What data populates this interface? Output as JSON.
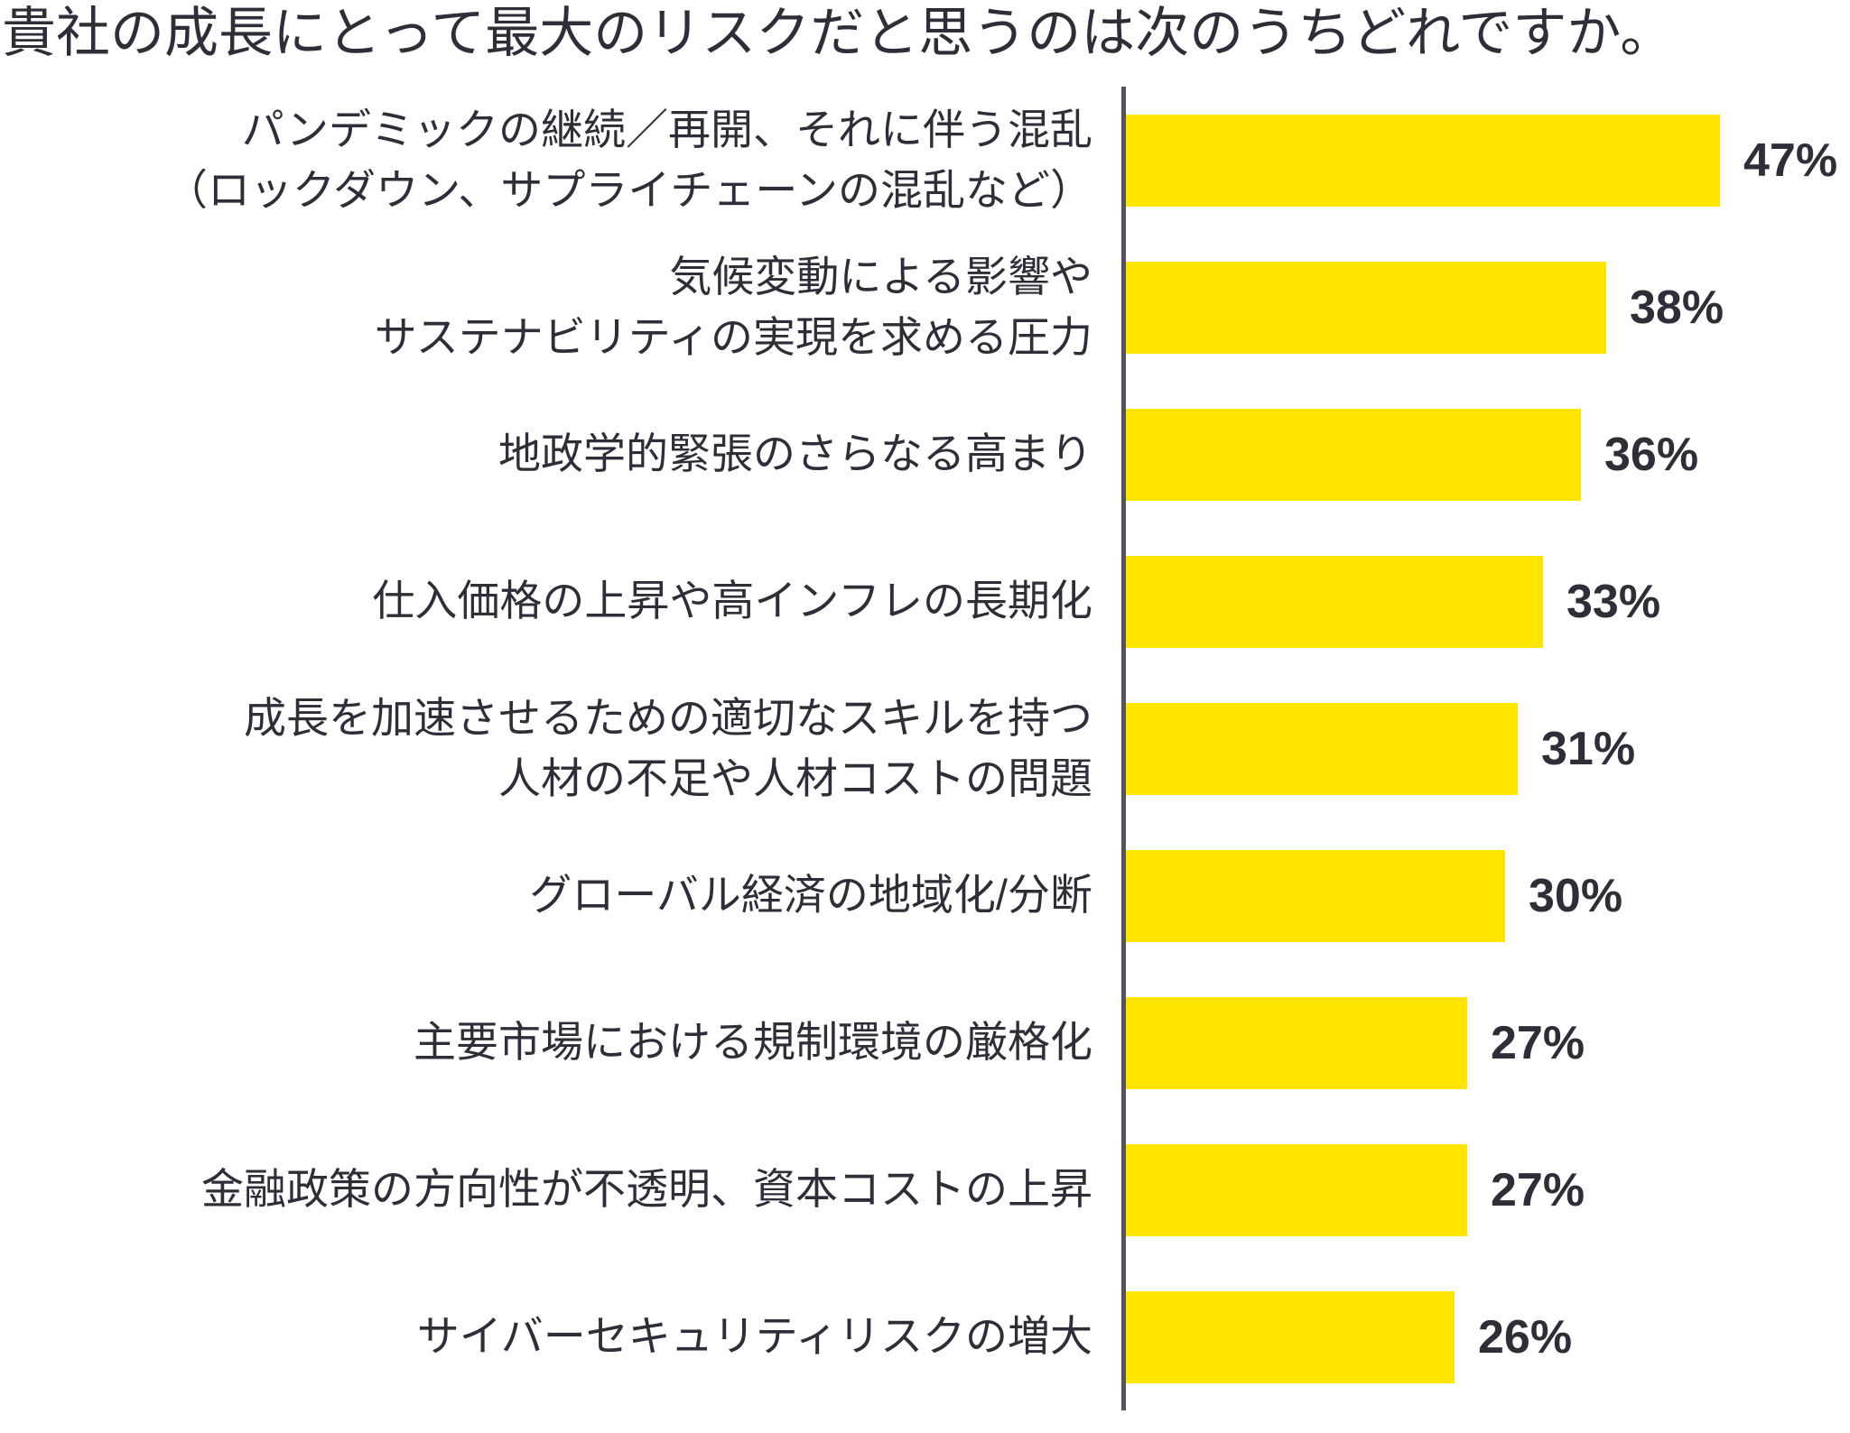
{
  "title": "貴社の成長にとって最大のリスクだと思うのは次のうちどれですか。",
  "colors": {
    "bar": "#FFE600",
    "text": "#2E2E38",
    "axis": "#54545E",
    "background": "#FFFFFF"
  },
  "chart_data": {
    "type": "bar",
    "orientation": "horizontal",
    "title": "貴社の成長にとって最大のリスクだと思うのは次のうちどれですか。",
    "categories": [
      "パンデミックの継続／再開、それに伴う混乱\n（ロックダウン、サプライチェーンの混乱など）",
      "気候変動による影響や\nサステナビリティの実現を求める圧力",
      "地政学的緊張のさらなる高まり",
      "仕入価格の上昇や高インフレの長期化",
      "成長を加速させるための適切なスキルを持つ\n人材の不足や人材コストの問題",
      "グローバル経済の地域化/分断",
      "主要市場における規制環境の厳格化",
      "金融政策の方向性が不透明、資本コストの上昇",
      "サイバーセキュリティリスクの増大"
    ],
    "values": [
      47,
      38,
      36,
      33,
      31,
      30,
      27,
      27,
      26
    ],
    "value_labels": [
      "47%",
      "38%",
      "36%",
      "33%",
      "31%",
      "30%",
      "27%",
      "27%",
      "26%"
    ],
    "unit": "%",
    "xlabel": "",
    "ylabel": "",
    "xlim": [
      0,
      55
    ],
    "grid": false,
    "legend": false,
    "data_labels_position": "outside-end"
  }
}
